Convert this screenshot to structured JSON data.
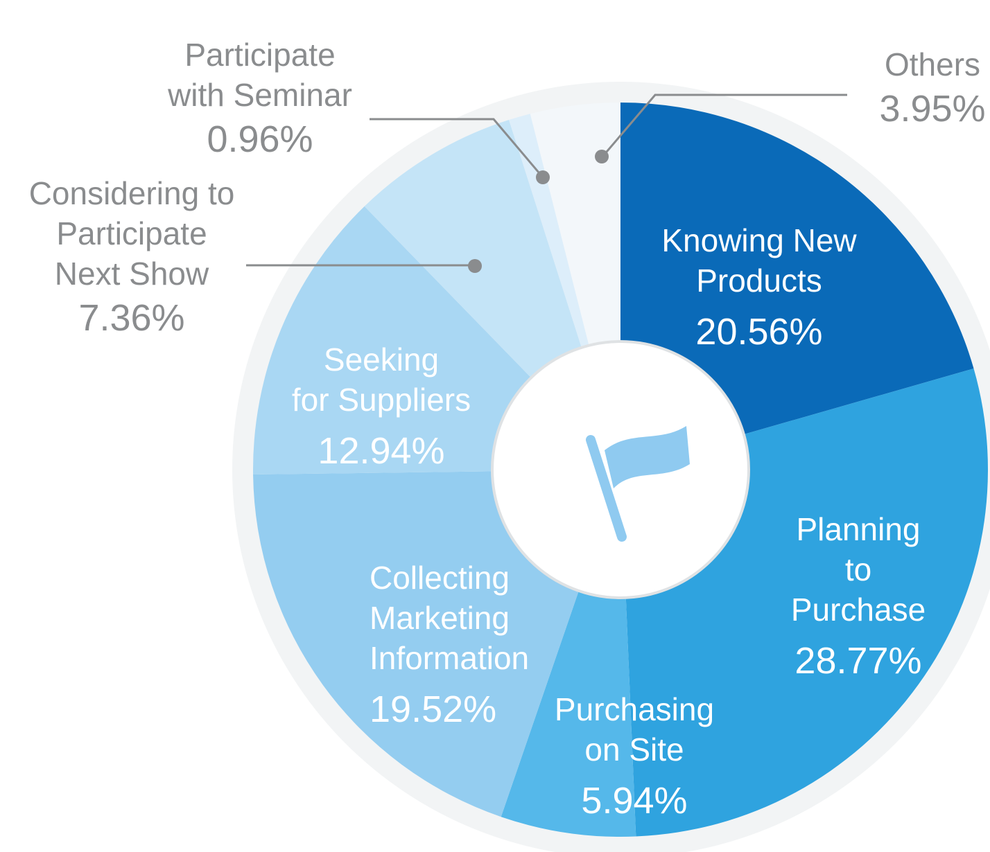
{
  "chart_data": {
    "type": "pie",
    "categories": [
      "Knowing New\nProducts",
      "Planning to\nPurchase",
      "Purchasing\non Site",
      "Collecting\nMarketing\nInformation",
      "Seeking\nfor Suppliers",
      "Considering to\nParticipate\nNext Show",
      "Participate\nwith Seminar",
      "Others"
    ],
    "values": [
      20.56,
      28.77,
      5.94,
      19.52,
      12.94,
      7.36,
      0.96,
      3.95
    ],
    "value_labels": [
      "20.56%",
      "28.77%",
      "5.94%",
      "19.52%",
      "12.94%",
      "7.36%",
      "0.96%",
      "3.95%"
    ],
    "colors": [
      "#0a6ab8",
      "#2fa3df",
      "#55b8ea",
      "#94cdf0",
      "#a9d7f3",
      "#c4e4f7",
      "#ddeefa",
      "#f3f7fa"
    ]
  }
}
